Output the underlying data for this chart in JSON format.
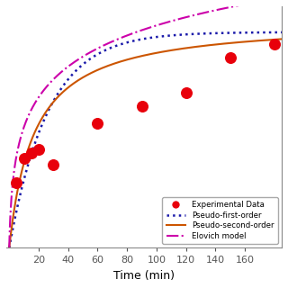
{
  "exp_x": [
    5,
    10,
    15,
    20,
    30,
    60,
    90,
    120,
    150,
    180
  ],
  "exp_y": [
    3.8,
    5.2,
    5.5,
    5.7,
    4.8,
    7.2,
    8.2,
    9.0,
    11.0,
    11.8
  ],
  "xlim": [
    -2,
    185
  ],
  "ylim": [
    0,
    14
  ],
  "xlabel": "Time (min)",
  "xticks": [
    20,
    40,
    60,
    80,
    100,
    120,
    140,
    160
  ],
  "pseudo_first_qe": 12.5,
  "pseudo_first_k1": 0.038,
  "pseudo_second_qe": 13.2,
  "pseudo_second_k2": 0.0045,
  "elovich_alpha": 3.5,
  "elovich_beta": 0.38,
  "legend_labels": [
    "Experimental Data",
    "Pseudo-first-order",
    "Pseudo-second-order",
    "Elovich model"
  ],
  "color_exp": "#e8000b",
  "color_pfo": "#1a1aaa",
  "color_pso": "#cc5500",
  "color_elovich": "#cc00aa",
  "background_color": "#ffffff"
}
